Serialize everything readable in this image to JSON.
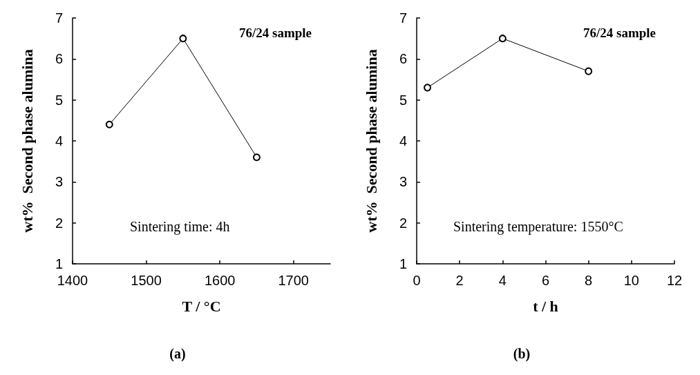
{
  "chart_data": [
    {
      "type": "line",
      "title": "(a)",
      "xlabel": "T / °C",
      "ylabel": "wt%  Second phase alumina",
      "x": [
        1450,
        1550,
        1650
      ],
      "series": [
        {
          "color": "#000000",
          "values": [
            4.4,
            6.5,
            3.6
          ]
        }
      ],
      "xlim": [
        1400,
        1750
      ],
      "xticks": [
        1400,
        1500,
        1600,
        1700
      ],
      "ylim": [
        1,
        7
      ],
      "yticks": [
        1,
        2,
        3,
        4,
        5,
        6,
        7
      ],
      "annotations": [
        "76/24 sample",
        "Sintering time: 4h"
      ],
      "marker": "circle",
      "line_style": "solid",
      "grid": false
    },
    {
      "type": "line",
      "title": "(b)",
      "xlabel": "t / h",
      "ylabel": "wt%  Second phase alumina",
      "x": [
        0.5,
        4,
        8
      ],
      "series": [
        {
          "color": "#000000",
          "values": [
            5.3,
            6.5,
            5.7
          ]
        }
      ],
      "xlim": [
        0,
        12
      ],
      "xticks": [
        0,
        2,
        4,
        6,
        8,
        10,
        12
      ],
      "ylim": [
        1,
        7
      ],
      "yticks": [
        1,
        2,
        3,
        4,
        5,
        6,
        7
      ],
      "annotations": [
        "76/24 sample",
        "Sintering temperature: 1550°C"
      ],
      "marker": "circle",
      "line_style": "solid",
      "grid": false
    }
  ]
}
